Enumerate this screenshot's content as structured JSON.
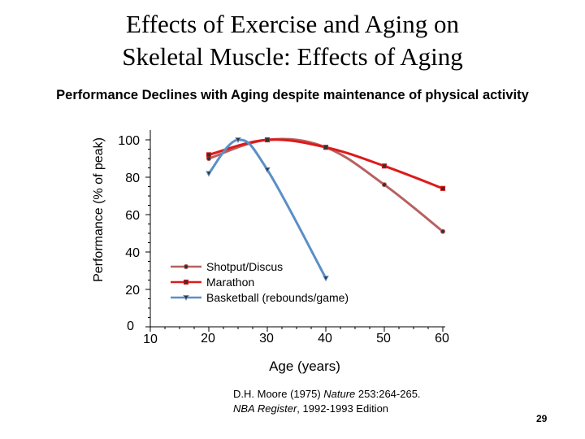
{
  "slide": {
    "title_line1": "Effects of Exercise and Aging on",
    "title_line2": "Skeletal Muscle: Effects of Aging",
    "subtitle": "Performance Declines with Aging despite maintenance of physical activity",
    "slide_number": "29"
  },
  "citation": {
    "line1_author": "D.H. Moore (1975) ",
    "line1_journal": "Nature",
    "line1_rest": " 253:264-265.",
    "line2_source": "NBA Register",
    "line2_rest": ", 1992-1993 Edition"
  },
  "chart_data": {
    "type": "line",
    "title": "",
    "xlabel": "Age (years)",
    "ylabel": "Performance (% of peak)",
    "xlim": [
      10,
      60
    ],
    "ylim": [
      0,
      100
    ],
    "x_ticks": [
      10,
      20,
      30,
      40,
      50,
      60
    ],
    "y_ticks": [
      0,
      20,
      40,
      60,
      80,
      100
    ],
    "legend_position": "lower-middle",
    "series": [
      {
        "name": "Shotput/Discus",
        "color": "#b86060",
        "marker": "circle",
        "points": [
          [
            20,
            90
          ],
          [
            30,
            100
          ],
          [
            40,
            96
          ],
          [
            50,
            76
          ],
          [
            60,
            51
          ]
        ]
      },
      {
        "name": "Marathon",
        "color": "#dd1a1a",
        "marker": "square",
        "points": [
          [
            20,
            92
          ],
          [
            30,
            100
          ],
          [
            40,
            96
          ],
          [
            50,
            86
          ],
          [
            60,
            74
          ]
        ]
      },
      {
        "name": "Basketball (rebounds/game)",
        "color": "#5b8fc7",
        "marker": "triangle",
        "points": [
          [
            20,
            82
          ],
          [
            25,
            100
          ],
          [
            30,
            84
          ],
          [
            40,
            26
          ]
        ]
      }
    ]
  }
}
